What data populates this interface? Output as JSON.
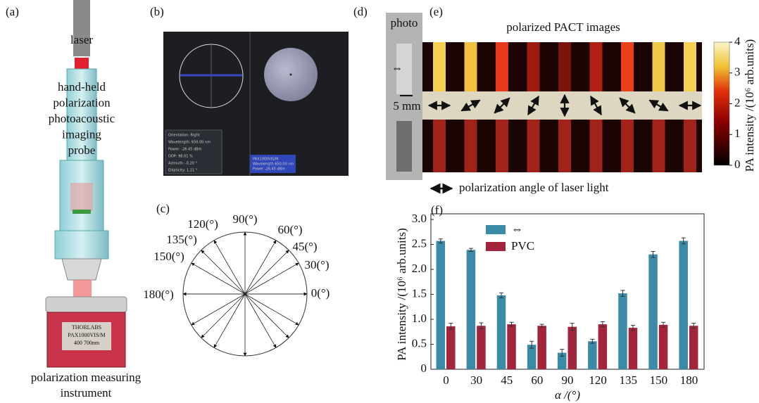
{
  "panel_labels": [
    "(a)",
    "(b)",
    "(c)",
    "(d)",
    "(e)",
    "(f)"
  ],
  "a": {
    "laser": "laser",
    "probe_lines": [
      "hand-held",
      "polarization",
      "photoacoustic",
      "imaging",
      "probe"
    ],
    "device_lines": [
      "THORLABS",
      "PAX1000VIS/M",
      "400  700nm"
    ],
    "instrument_lines": [
      "polarization measuring",
      "instrument"
    ]
  },
  "b": {
    "info_lines": [
      "Orientation: Right",
      "Wavelength: 650.00 nm",
      "Power: -26.45 dBm",
      "DOP: 98.01 %",
      "Azimuth: -0.20 °",
      "Ellipticity: 1.21 °"
    ],
    "blue_lines": [
      "PAX1000VIS/M",
      "Wavelength 650.00 nm",
      "Power -26.45 dBm"
    ]
  },
  "c": {
    "angle_labels": [
      "0(°)",
      "30(°)",
      "45(°)",
      "60(°)",
      "90(°)",
      "120(°)",
      "135(°)",
      "150(°)",
      "180(°)"
    ]
  },
  "d": {
    "photo": "photo",
    "scale": "5 mm"
  },
  "e": {
    "title": "polarized PACT images",
    "caption": "polarization angle of laser light",
    "colorbar": {
      "label": "PA intensity /(10⁶ arb.units)",
      "lim": [
        0,
        4
      ],
      "ticks": [
        0,
        1,
        2,
        3,
        4
      ]
    }
  },
  "chart_data": {
    "type": "bar",
    "categories": [
      "0",
      "30",
      "45",
      "60",
      "90",
      "120",
      "135",
      "150",
      "180"
    ],
    "series": [
      {
        "name": "⇔",
        "color": "#3b8aa6",
        "values": [
          2.57,
          2.39,
          1.48,
          0.49,
          0.33,
          0.56,
          1.52,
          2.3,
          2.57
        ],
        "errors": [
          0.04,
          0.03,
          0.05,
          0.07,
          0.07,
          0.04,
          0.06,
          0.06,
          0.06
        ]
      },
      {
        "name": "PVC",
        "color": "#a3253b",
        "values": [
          0.86,
          0.87,
          0.9,
          0.87,
          0.85,
          0.9,
          0.83,
          0.89,
          0.87
        ],
        "errors": [
          0.06,
          0.06,
          0.04,
          0.03,
          0.07,
          0.05,
          0.05,
          0.05,
          0.05
        ]
      }
    ],
    "ylim": [
      0,
      3
    ],
    "yticks": [
      0,
      0.5,
      {
        "value": 1,
        "label": "1.0"
      },
      1.5,
      {
        "value": 2,
        "label": "2.0"
      },
      2.5,
      {
        "value": 3,
        "label": "3.0"
      }
    ],
    "xlabel": "α /(°)",
    "ylabel": "PA intensity /(10⁶ arb.units)"
  }
}
